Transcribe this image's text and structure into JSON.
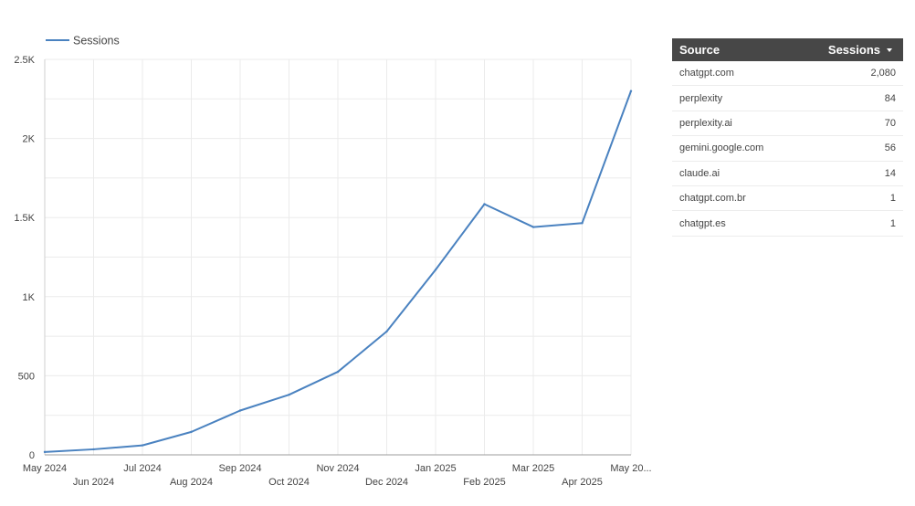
{
  "chart_data": {
    "type": "line",
    "legend": "top-left",
    "grid": true,
    "series": [
      {
        "name": "Sessions",
        "color": "#4a82c0",
        "values": [
          18,
          35,
          60,
          145,
          280,
          380,
          525,
          780,
          1170,
          1585,
          1440,
          1465,
          2300
        ]
      }
    ],
    "categories": [
      "May 2024",
      "Jun 2024",
      "Jul 2024",
      "Aug 2024",
      "Sep 2024",
      "Oct 2024",
      "Nov 2024",
      "Dec 2024",
      "Jan 2025",
      "Feb 2025",
      "Mar 2025",
      "Apr 2025",
      "May 20..."
    ],
    "y_ticks": [
      {
        "value": 0,
        "label": "0"
      },
      {
        "value": 500,
        "label": "500"
      },
      {
        "value": 1000,
        "label": "1K"
      },
      {
        "value": 1500,
        "label": "1.5K"
      },
      {
        "value": 2000,
        "label": "2K"
      },
      {
        "value": 2500,
        "label": "2.5K"
      }
    ],
    "ylim": [
      0,
      2500
    ]
  },
  "table": {
    "header": {
      "source": "Source",
      "sessions": "Sessions"
    },
    "sort_icon": "sort-descending-icon",
    "header_bg": "#474747",
    "rows": [
      {
        "source": "chatgpt.com",
        "sessions": "2,080"
      },
      {
        "source": "perplexity",
        "sessions": "84"
      },
      {
        "source": "perplexity.ai",
        "sessions": "70"
      },
      {
        "source": "gemini.google.com",
        "sessions": "56"
      },
      {
        "source": "claude.ai",
        "sessions": "14"
      },
      {
        "source": "chatgpt.com.br",
        "sessions": "1"
      },
      {
        "source": "chatgpt.es",
        "sessions": "1"
      }
    ]
  }
}
